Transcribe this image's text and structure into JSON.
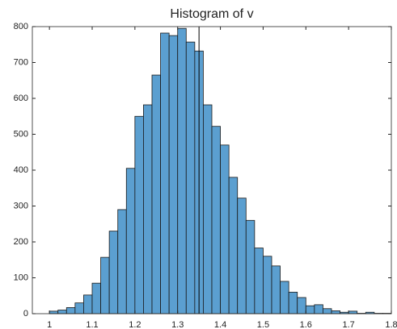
{
  "chart_data": {
    "type": "histogram",
    "title": "Histogram of v",
    "bins": [
      1.0,
      1.02,
      1.04,
      1.06,
      1.08,
      1.1,
      1.12,
      1.14,
      1.16,
      1.18,
      1.2,
      1.22,
      1.24,
      1.26,
      1.28,
      1.3,
      1.32,
      1.34,
      1.36,
      1.38,
      1.4,
      1.42,
      1.44,
      1.46,
      1.48,
      1.5,
      1.52,
      1.54,
      1.56,
      1.58,
      1.6,
      1.62,
      1.64,
      1.66,
      1.68,
      1.7,
      1.72,
      1.74,
      1.76,
      1.78,
      1.8
    ],
    "values": [
      7,
      10,
      17,
      30,
      52,
      85,
      157,
      230,
      290,
      405,
      550,
      582,
      665,
      782,
      775,
      795,
      757,
      732,
      582,
      522,
      470,
      380,
      322,
      260,
      183,
      160,
      133,
      90,
      60,
      45,
      22,
      25,
      14,
      8,
      4,
      7,
      1,
      4,
      1,
      1
    ],
    "color": "#5b9fd0",
    "reference_line_x": 1.35,
    "xlim": [
      0.96,
      1.8
    ],
    "xticks": [
      1,
      1.1,
      1.2,
      1.3,
      1.4,
      1.5,
      1.6,
      1.7,
      1.8
    ],
    "ylim": [
      0,
      800
    ],
    "yticks": [
      0,
      100,
      200,
      300,
      400,
      500,
      600,
      700,
      800
    ]
  }
}
